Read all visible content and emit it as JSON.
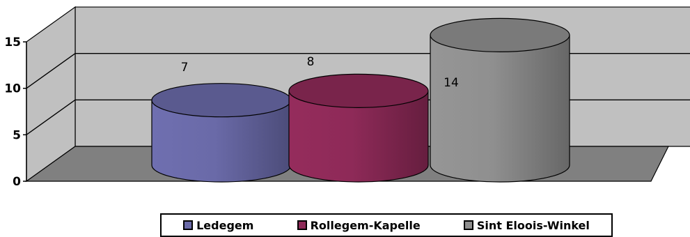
{
  "chart_data": {
    "type": "bar",
    "style": "3d-cylinder",
    "categories": [
      "Ledegem",
      "Rollegem-Kapelle",
      "Sint Eloois-Winkel"
    ],
    "values": [
      7,
      8,
      14
    ],
    "data_labels": [
      "7",
      "8",
      "14"
    ],
    "colors": [
      "#6a6aa8",
      "#8e2a58",
      "#8f8f8f"
    ],
    "y_ticks": [
      "0",
      "5",
      "10",
      "15"
    ],
    "ylim": [
      0,
      15
    ],
    "grid": true,
    "legend_position": "bottom",
    "wall_color": "#c0c0c0",
    "floor_color": "#808080"
  }
}
